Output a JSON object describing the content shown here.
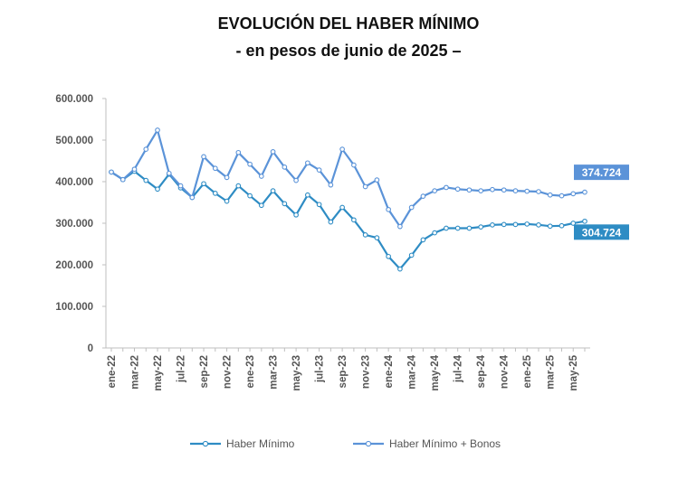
{
  "chart_data": {
    "type": "line",
    "title": "EVOLUCIÓN DEL HABER MÍNIMO",
    "subtitle": "- en pesos de junio de 2025 –",
    "x": [
      "ene-22",
      "feb-22",
      "mar-22",
      "abr-22",
      "may-22",
      "jun-22",
      "jul-22",
      "ago-22",
      "sep-22",
      "oct-22",
      "nov-22",
      "dic-22",
      "ene-23",
      "feb-23",
      "mar-23",
      "abr-23",
      "may-23",
      "jun-23",
      "jul-23",
      "ago-23",
      "sep-23",
      "oct-23",
      "nov-23",
      "dic-23",
      "ene-24",
      "feb-24",
      "mar-24",
      "abr-24",
      "may-24",
      "jun-24",
      "jul-24",
      "ago-24",
      "sep-24",
      "oct-24",
      "nov-24",
      "dic-24",
      "ene-25",
      "feb-25",
      "mar-25",
      "abr-25",
      "may-25",
      "jun-25"
    ],
    "x_tick_labels": [
      "ene-22",
      "mar-22",
      "may-22",
      "jul-22",
      "sep-22",
      "nov-22",
      "ene-23",
      "mar-23",
      "may-23",
      "jul-23",
      "sep-23",
      "nov-23",
      "ene-24",
      "mar-24",
      "may-24",
      "jul-24",
      "sep-24",
      "nov-24",
      "ene-25",
      "mar-25",
      "may-25"
    ],
    "y_ticks": [
      "0",
      "100.000",
      "200.000",
      "300.000",
      "400.000",
      "500.000",
      "600.000"
    ],
    "ylim": [
      0,
      600000
    ],
    "grid": false,
    "legend_position": "bottom",
    "series": [
      {
        "name": "Haber Mínimo",
        "color": "#2e8cc4",
        "values": [
          423000,
          405000,
          425000,
          403000,
          382000,
          418000,
          385000,
          362000,
          395000,
          372000,
          353000,
          390000,
          366000,
          343000,
          378000,
          347000,
          320000,
          368000,
          345000,
          303000,
          338000,
          308000,
          272000,
          265000,
          220000,
          190000,
          223000,
          260000,
          277000,
          288000,
          288000,
          288000,
          291000,
          296000,
          297000,
          297000,
          298000,
          296000,
          293000,
          294000,
          300000,
          304724
        ],
        "end_label": "304.724"
      },
      {
        "name": "Haber Mínimo + Bonos",
        "color": "#5b93d8",
        "values": [
          423000,
          405000,
          430000,
          478000,
          524000,
          420000,
          390000,
          362000,
          460000,
          432000,
          410000,
          470000,
          442000,
          413000,
          472000,
          435000,
          403000,
          445000,
          428000,
          392000,
          478000,
          440000,
          388000,
          404000,
          333000,
          292000,
          338000,
          365000,
          378000,
          386000,
          382000,
          380000,
          378000,
          381000,
          380000,
          378000,
          377000,
          376000,
          368000,
          366000,
          371000,
          374724
        ],
        "end_label": "374.724"
      }
    ]
  }
}
